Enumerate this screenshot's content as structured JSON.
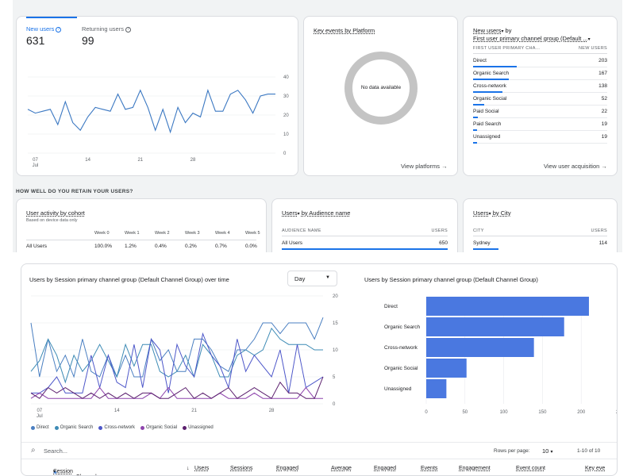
{
  "new_users_card": {
    "tab_new_users": "New users",
    "tab_returning": "Returning users",
    "new_users_value": "631",
    "returning_value": "99",
    "y_ticks": [
      "40",
      "30",
      "20",
      "10",
      "0"
    ],
    "x_ticks": [
      "07",
      "14",
      "21",
      "28"
    ],
    "x_month": "Jul",
    "series": [
      23,
      21,
      22,
      23,
      15,
      27,
      16,
      12,
      19,
      24,
      23,
      22,
      31,
      23,
      24,
      33,
      24,
      12,
      23,
      11,
      24,
      16,
      21,
      19,
      33,
      22,
      22,
      31,
      33,
      28,
      21,
      30,
      31,
      31
    ]
  },
  "key_events_card": {
    "title": "Key events by Platform",
    "no_data": "No data available",
    "link": "View platforms"
  },
  "acquisition_card": {
    "title_line1": "New users",
    "title_by": " by",
    "title_line2": "First user primary channel group (Default ...",
    "col_dim": "FIRST USER PRIMARY CHA...",
    "col_metric": "NEW USERS",
    "rows": [
      {
        "label": "Direct",
        "value": "203",
        "frac": 1.0
      },
      {
        "label": "Organic Search",
        "value": "167",
        "frac": 0.82
      },
      {
        "label": "Cross-network",
        "value": "138",
        "frac": 0.68
      },
      {
        "label": "Organic Social",
        "value": "52",
        "frac": 0.26
      },
      {
        "label": "Paid Social",
        "value": "22",
        "frac": 0.11
      },
      {
        "label": "Paid Search",
        "value": "19",
        "frac": 0.09
      },
      {
        "label": "Unassigned",
        "value": "19",
        "frac": 0.09
      }
    ],
    "link": "View user acquisition"
  },
  "retention": {
    "section_label": "HOW WELL DO YOU RETAIN YOUR USERS?",
    "cohort_title": "User activity by cohort",
    "cohort_sub": "Based on device data only",
    "weeks": [
      "Week 0",
      "Week 1",
      "Week 2",
      "Week 3",
      "Week 4",
      "Week 5"
    ],
    "row_label": "All Users",
    "row_values": [
      "100.0%",
      "1.2%",
      "0.4%",
      "0.2%",
      "0.7%",
      "0.0%"
    ]
  },
  "audience_card": {
    "title_metric": "Users",
    "title_dim": "by Audience name",
    "col_dim": "AUDIENCE NAME",
    "col_metric": "USERS",
    "row_label": "All Users",
    "row_value": "650"
  },
  "city_card": {
    "title_metric": "Users",
    "title_dim": "by City",
    "col_dim": "CITY",
    "col_metric": "USERS",
    "row_label": "Sydney",
    "row_value": "114"
  },
  "bottom": {
    "line_title": "Users by Session primary channel group (Default Channel Group) over time",
    "granularity": "Day",
    "bar_title": "Users by Session primary channel group (Default Channel Group)",
    "search_placeholder": "Search...",
    "rows_per_page_label": "Rows per page:",
    "rows_per_page": "10",
    "pagination": "1-10 of 10",
    "dim_select": "Session primary...Channel Group)",
    "columns": [
      "Users",
      "Sessions",
      "Engaged",
      "Average",
      "Engaged",
      "Events",
      "Engagement",
      "Event count",
      "Key eve"
    ]
  },
  "chart_data": [
    {
      "type": "line",
      "x_ticks": [
        "07",
        "14",
        "21",
        "28"
      ],
      "x_month": "Jul",
      "y_ticks": [
        "20",
        "15",
        "10",
        "5",
        "0"
      ],
      "ylim": [
        0,
        20
      ],
      "series": [
        {
          "name": "Direct",
          "color": "#4a7fc1",
          "values": [
            15,
            5,
            12,
            6,
            9,
            5,
            12,
            6,
            5,
            9,
            5,
            9,
            5,
            5,
            12,
            8,
            10,
            6,
            6,
            12,
            12,
            10,
            7,
            6,
            10,
            10,
            12,
            15,
            15,
            13,
            15,
            15,
            15,
            12,
            16
          ]
        },
        {
          "name": "Organic Search",
          "color": "#3d8bb5",
          "values": [
            6,
            8,
            12,
            9,
            4,
            9,
            6,
            8,
            11,
            8,
            5,
            11,
            7,
            11,
            11,
            6,
            5,
            6,
            9,
            5,
            11,
            9,
            5,
            5,
            9,
            10,
            9,
            10,
            14,
            12,
            11,
            11,
            11,
            10,
            10
          ]
        },
        {
          "name": "Cross-network",
          "color": "#4d57c9",
          "values": [
            2,
            2,
            3,
            5,
            2,
            2,
            2,
            9,
            3,
            9,
            4,
            3,
            11,
            3,
            12,
            10,
            2,
            11,
            7,
            5,
            13,
            9,
            7,
            3,
            12,
            6,
            9,
            7,
            5,
            10,
            2,
            11,
            3,
            4,
            5
          ]
        },
        {
          "name": "Organic Social",
          "color": "#8e44ad",
          "values": [
            1,
            2,
            1,
            1,
            1,
            1,
            1,
            1,
            3,
            1,
            1,
            1,
            1,
            1,
            2,
            1,
            3,
            1,
            1,
            1,
            1,
            1,
            2,
            1,
            1,
            1,
            2,
            1,
            1,
            1,
            1,
            1,
            3,
            1,
            1
          ]
        },
        {
          "name": "Unassigned",
          "color": "#5b1f6e",
          "values": [
            2,
            1,
            3,
            2,
            3,
            2,
            1,
            2,
            1,
            2,
            1,
            2,
            1,
            2,
            2,
            1,
            1,
            2,
            3,
            1,
            2,
            1,
            2,
            3,
            1,
            2,
            3,
            2,
            1,
            4,
            2,
            2,
            1,
            1,
            5
          ]
        }
      ]
    },
    {
      "type": "bar",
      "orientation": "horizontal",
      "categories": [
        "Direct",
        "Organic Search",
        "Cross-network",
        "Organic Social",
        "Unassigned"
      ],
      "values": [
        210,
        178,
        139,
        52,
        26
      ],
      "xlim": [
        0,
        250
      ],
      "x_ticks": [
        "0",
        "50",
        "100",
        "150",
        "200",
        "250"
      ],
      "color": "#4a78e0"
    }
  ]
}
